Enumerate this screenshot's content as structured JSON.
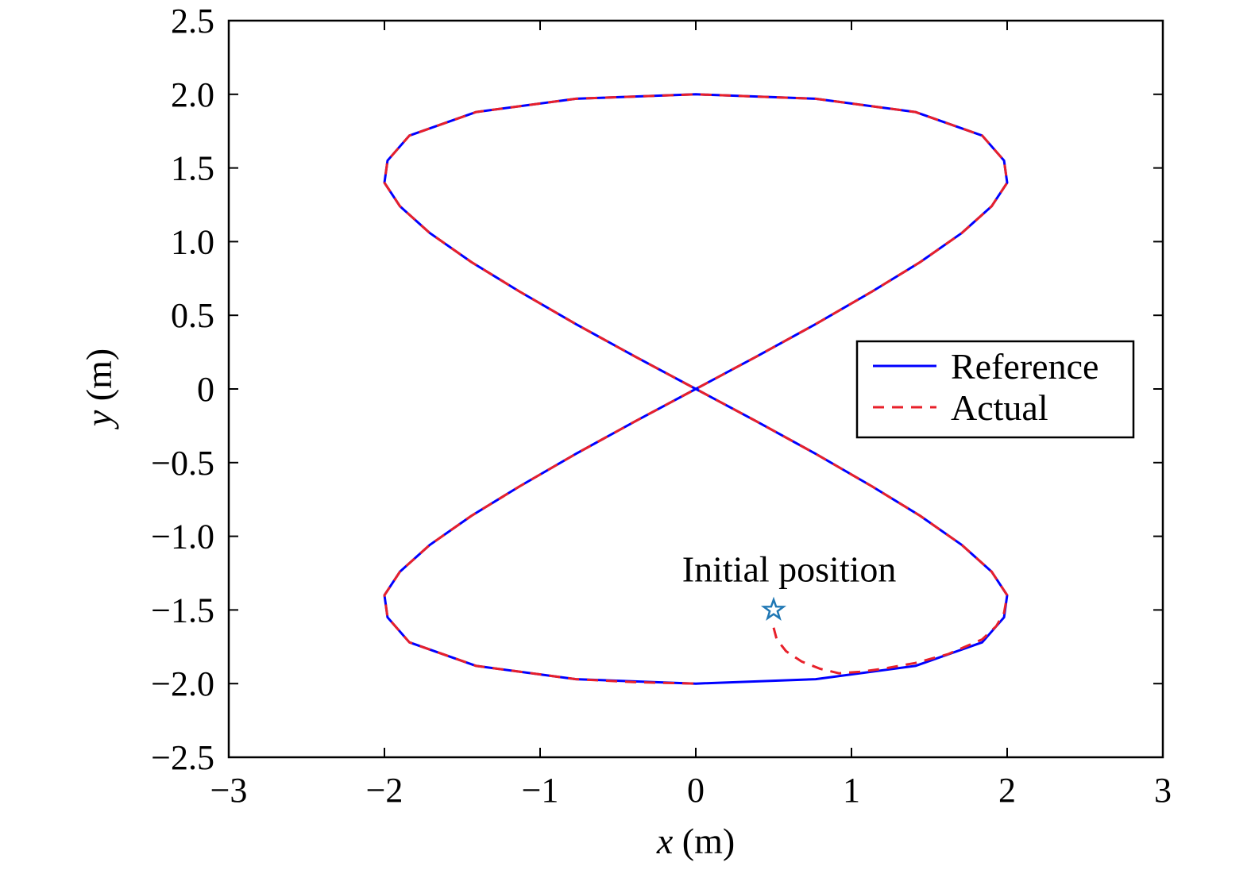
{
  "chart_data": {
    "type": "line",
    "xlabel_var": "x",
    "xlabel_unit": " (m)",
    "ylabel_var": "y",
    "ylabel_unit": " (m)",
    "xlim": [
      -3,
      3
    ],
    "ylim": [
      -2.5,
      2.5
    ],
    "xticks": [
      -3,
      -2,
      -1,
      0,
      1,
      2,
      3
    ],
    "xtick_labels": [
      "−3",
      "−2",
      "−1",
      "0",
      "1",
      "2",
      "3"
    ],
    "yticks": [
      2.5,
      2.0,
      1.5,
      1.0,
      0.5,
      0,
      -0.5,
      -1.0,
      -1.5,
      -2.0,
      -2.5
    ],
    "ytick_labels": [
      "2.5",
      "2.0",
      "1.5",
      "1.0",
      "0.5",
      "0",
      "−0.5",
      "−1.0",
      "−1.5",
      "−2.0",
      "−2.5"
    ],
    "grid": false,
    "legend_position": "center-right",
    "series": [
      {
        "name": "Reference",
        "color": "#0000ff",
        "style": "solid",
        "x": [
          0,
          0.39,
          0.77,
          1.13,
          1.44,
          1.71,
          1.9,
          2.0,
          1.98,
          1.84,
          1.41,
          0.77,
          0,
          -0.77,
          -1.41,
          -1.84,
          -1.98,
          -2.0,
          -1.9,
          -1.71,
          -1.44,
          -1.13,
          -0.77,
          -0.39,
          0,
          0.39,
          0.77,
          1.13,
          1.44,
          1.71,
          1.9,
          2.0,
          1.98,
          1.84,
          1.41,
          0.77,
          0,
          -0.77,
          -1.41,
          -1.84,
          -1.98,
          -2.0,
          -1.9,
          -1.71,
          -1.44,
          -1.13,
          -0.77,
          -0.39,
          0
        ],
        "y": [
          0,
          0.22,
          0.44,
          0.66,
          0.86,
          1.06,
          1.24,
          1.4,
          1.55,
          1.72,
          1.88,
          1.97,
          2.0,
          1.97,
          1.88,
          1.72,
          1.55,
          1.4,
          1.24,
          1.06,
          0.86,
          0.66,
          0.44,
          0.22,
          0,
          -0.22,
          -0.44,
          -0.66,
          -0.86,
          -1.06,
          -1.24,
          -1.4,
          -1.55,
          -1.72,
          -1.88,
          -1.97,
          -2.0,
          -1.97,
          -1.88,
          -1.72,
          -1.55,
          -1.4,
          -1.24,
          -1.06,
          -0.86,
          -0.66,
          -0.44,
          -0.22,
          0
        ]
      },
      {
        "name": "Actual",
        "color": "#e8202a",
        "style": "dashed",
        "x": [
          0.5,
          0.52,
          0.58,
          0.68,
          0.8,
          0.92,
          1.05,
          1.2,
          1.41,
          1.62,
          1.84,
          1.93,
          1.98,
          2.0,
          1.9,
          1.71,
          1.44,
          1.13,
          0.77,
          0.39,
          0,
          -0.39,
          -0.77,
          -1.13,
          -1.44,
          -1.71,
          -1.9,
          -2.0,
          -1.98,
          -1.84,
          -1.41,
          -0.77,
          0,
          0.77,
          1.41,
          1.84,
          1.98,
          2.0,
          1.9,
          1.71,
          1.44,
          1.13,
          0.77,
          0.39,
          0,
          -0.39,
          -0.77,
          -1.13,
          -1.44,
          -1.71,
          -1.9,
          -2.0,
          -1.98,
          -1.84,
          -1.41,
          -0.77,
          -0.4,
          0
        ],
        "y": [
          -1.62,
          -1.7,
          -1.78,
          -1.85,
          -1.9,
          -1.93,
          -1.92,
          -1.9,
          -1.86,
          -1.8,
          -1.7,
          -1.61,
          -1.52,
          -1.4,
          -1.24,
          -1.06,
          -0.86,
          -0.66,
          -0.44,
          -0.22,
          0,
          0.22,
          0.44,
          0.66,
          0.86,
          1.06,
          1.24,
          1.4,
          1.55,
          1.72,
          1.88,
          1.97,
          2.0,
          1.97,
          1.88,
          1.72,
          1.55,
          1.4,
          1.24,
          1.06,
          0.86,
          0.66,
          0.44,
          0.22,
          0,
          -0.22,
          -0.44,
          -0.66,
          -0.86,
          -1.06,
          -1.24,
          -1.4,
          -1.55,
          -1.72,
          -1.88,
          -1.97,
          -1.99,
          -2.0
        ]
      }
    ],
    "marker": {
      "shape": "star",
      "x": 0.5,
      "y": -1.5,
      "color": "#1f77b4"
    },
    "annotation": {
      "text": "Initial position",
      "x": 0.6,
      "y": -1.22
    }
  }
}
